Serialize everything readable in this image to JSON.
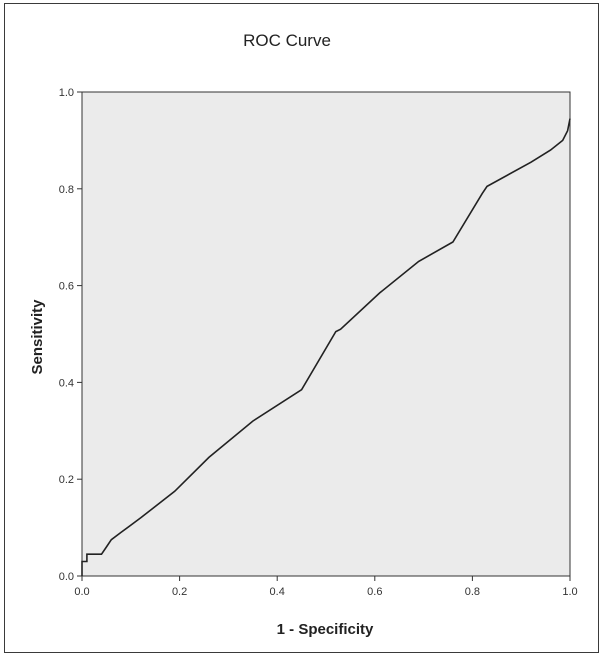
{
  "chart_data": {
    "type": "line",
    "title": "ROC Curve",
    "xlabel": "1 - Specificity",
    "ylabel": "Sensitivity",
    "xlim": [
      0.0,
      1.0
    ],
    "ylim": [
      0.0,
      1.0
    ],
    "x_ticks": [
      "0.0",
      "0.2",
      "0.4",
      "0.6",
      "0.8",
      "1.0"
    ],
    "y_ticks": [
      "0.0",
      "0.2",
      "0.4",
      "0.6",
      "0.8",
      "1.0"
    ],
    "grid": false,
    "legend": "none",
    "background_color": "#ebebeb",
    "line_color": "#222222",
    "series": [
      {
        "x": [
          0.0,
          0.0,
          0.01,
          0.01,
          0.04,
          0.05,
          0.06,
          0.08,
          0.12,
          0.19,
          0.26,
          0.35,
          0.45,
          0.52,
          0.53,
          0.61,
          0.69,
          0.76,
          0.82,
          0.83,
          0.92,
          0.96,
          0.985,
          0.995,
          1.0
        ],
        "y": [
          0.0,
          0.03,
          0.03,
          0.045,
          0.045,
          0.06,
          0.075,
          0.09,
          0.12,
          0.175,
          0.245,
          0.32,
          0.385,
          0.505,
          0.51,
          0.585,
          0.65,
          0.69,
          0.79,
          0.805,
          0.855,
          0.88,
          0.9,
          0.92,
          0.945
        ]
      }
    ]
  }
}
